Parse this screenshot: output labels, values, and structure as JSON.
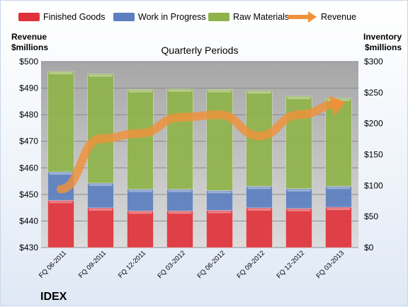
{
  "chart_data": {
    "type": "bar",
    "title": "Quarterly Periods",
    "company": "IDEX",
    "left_axis_title": [
      "Revenue",
      "$millions"
    ],
    "right_axis_title": [
      "Inventory",
      "$millions"
    ],
    "categories": [
      "FQ 06-2011",
      "FQ 09-2011",
      "FQ 12-2011",
      "FQ 03-2012",
      "FQ 06-2012",
      "FQ 09-2012",
      "FQ 12-2012",
      "FQ 03-2013"
    ],
    "stacked": true,
    "inventory_axis": {
      "min": 0,
      "max": 300,
      "step": 50
    },
    "revenue_axis": {
      "min": 430,
      "max": 500,
      "step": 10
    },
    "legend_position": "top",
    "bar_series": [
      {
        "name": "Finished Goods",
        "color": "#e0323a",
        "values": [
          76,
          64,
          59,
          59,
          60,
          64,
          63,
          65
        ]
      },
      {
        "name": "Work in Progress",
        "color": "#5b7fbf",
        "values": [
          46,
          40,
          35,
          35,
          32,
          35,
          32,
          34
        ]
      },
      {
        "name": "Raw Materials",
        "color": "#8fb34a",
        "values": [
          162,
          176,
          161,
          162,
          163,
          154,
          149,
          142
        ]
      }
    ],
    "line_series": [
      {
        "name": "Revenue",
        "color": "#f0913a",
        "values": [
          452,
          471,
          473,
          479,
          480,
          472,
          480,
          484
        ]
      }
    ]
  }
}
